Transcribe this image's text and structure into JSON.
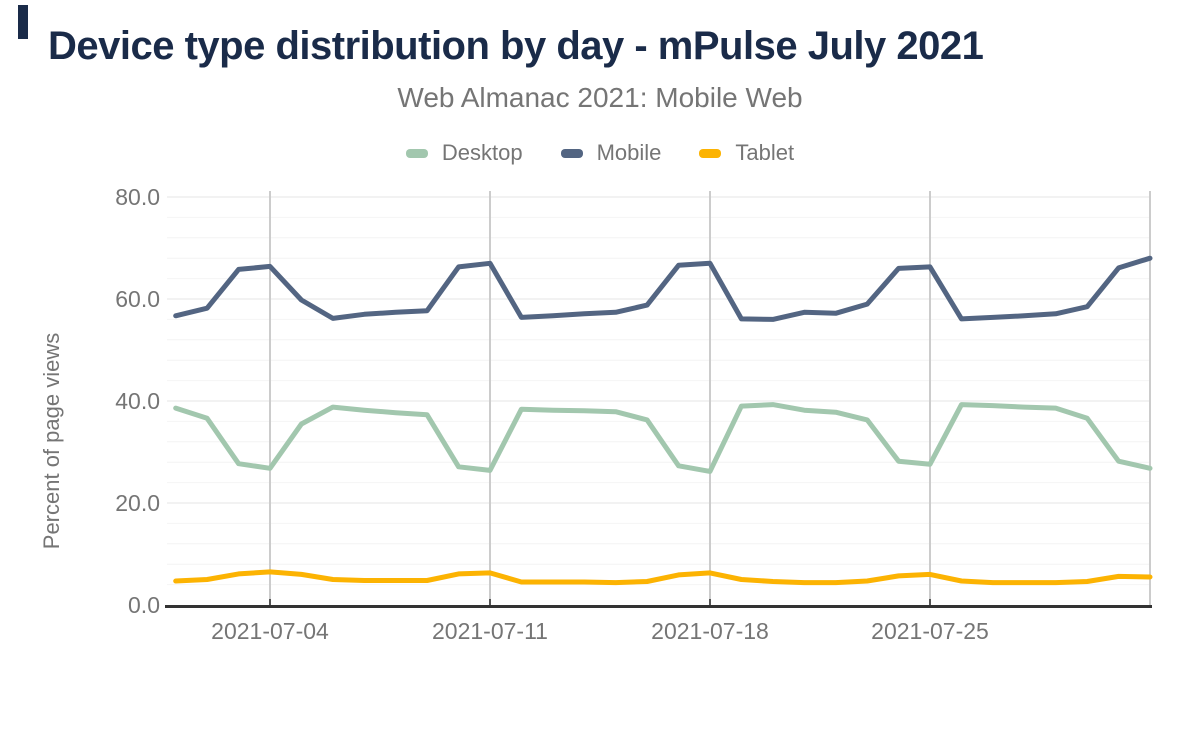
{
  "chart_data": {
    "type": "line",
    "title": "Device type distribution by day - mPulse July 2021",
    "subtitle": "Web Almanac 2021: Mobile Web",
    "ylabel": "Percent of page views",
    "ylim": [
      0,
      80
    ],
    "legend_position": "top-center",
    "grid": {
      "week_color": "#cccccc",
      "major_color": "#e6e6e6",
      "minor_color": "#f4f4f4",
      "minor_step": 4
    },
    "axis_color": "#333333",
    "title_color": "#1a2b49",
    "label_color": "#757575",
    "y_axis": {
      "ticks": [
        "80.0",
        "60.0",
        "40.0",
        "20.0",
        "0.0"
      ]
    },
    "x_axis": {
      "ticks": [
        "2021-07-04",
        "2021-07-11",
        "2021-07-18",
        "2021-07-25"
      ]
    },
    "x": [
      "2021-07-01",
      "2021-07-02",
      "2021-07-03",
      "2021-07-04",
      "2021-07-05",
      "2021-07-06",
      "2021-07-07",
      "2021-07-08",
      "2021-07-09",
      "2021-07-10",
      "2021-07-11",
      "2021-07-12",
      "2021-07-13",
      "2021-07-14",
      "2021-07-15",
      "2021-07-16",
      "2021-07-17",
      "2021-07-18",
      "2021-07-19",
      "2021-07-20",
      "2021-07-21",
      "2021-07-22",
      "2021-07-23",
      "2021-07-24",
      "2021-07-25",
      "2021-07-26",
      "2021-07-27",
      "2021-07-28",
      "2021-07-29",
      "2021-07-30",
      "2021-07-31",
      "2021-08-01"
    ],
    "series": [
      {
        "name": "Desktop",
        "color": "#a2c7ae",
        "values": [
          38.6,
          36.6,
          27.7,
          26.8,
          35.5,
          38.8,
          38.2,
          37.7,
          37.3,
          27.1,
          26.4,
          38.4,
          38.2,
          38.1,
          37.9,
          36.3,
          27.3,
          26.2,
          39.0,
          39.3,
          38.2,
          37.8,
          36.3,
          28.2,
          27.6,
          39.3,
          39.1,
          38.8,
          38.6,
          36.6,
          28.2,
          26.8
        ]
      },
      {
        "name": "Mobile",
        "color": "#536582",
        "values": [
          56.7,
          58.2,
          65.8,
          66.4,
          59.8,
          56.2,
          57.0,
          57.4,
          57.7,
          66.3,
          67.0,
          56.4,
          56.7,
          57.1,
          57.4,
          58.8,
          66.6,
          67.0,
          56.1,
          56.0,
          57.4,
          57.2,
          59.0,
          66.0,
          66.3,
          56.1,
          56.4,
          56.7,
          57.1,
          58.5,
          66.1,
          68.0
        ]
      },
      {
        "name": "Tablet",
        "color": "#fcb302",
        "values": [
          4.7,
          5.0,
          6.1,
          6.5,
          6.0,
          5.0,
          4.8,
          4.8,
          4.8,
          6.1,
          6.3,
          4.5,
          4.5,
          4.5,
          4.4,
          4.6,
          5.9,
          6.3,
          5.0,
          4.6,
          4.4,
          4.4,
          4.7,
          5.7,
          6.0,
          4.7,
          4.4,
          4.4,
          4.4,
          4.6,
          5.6,
          5.5
        ]
      }
    ]
  }
}
